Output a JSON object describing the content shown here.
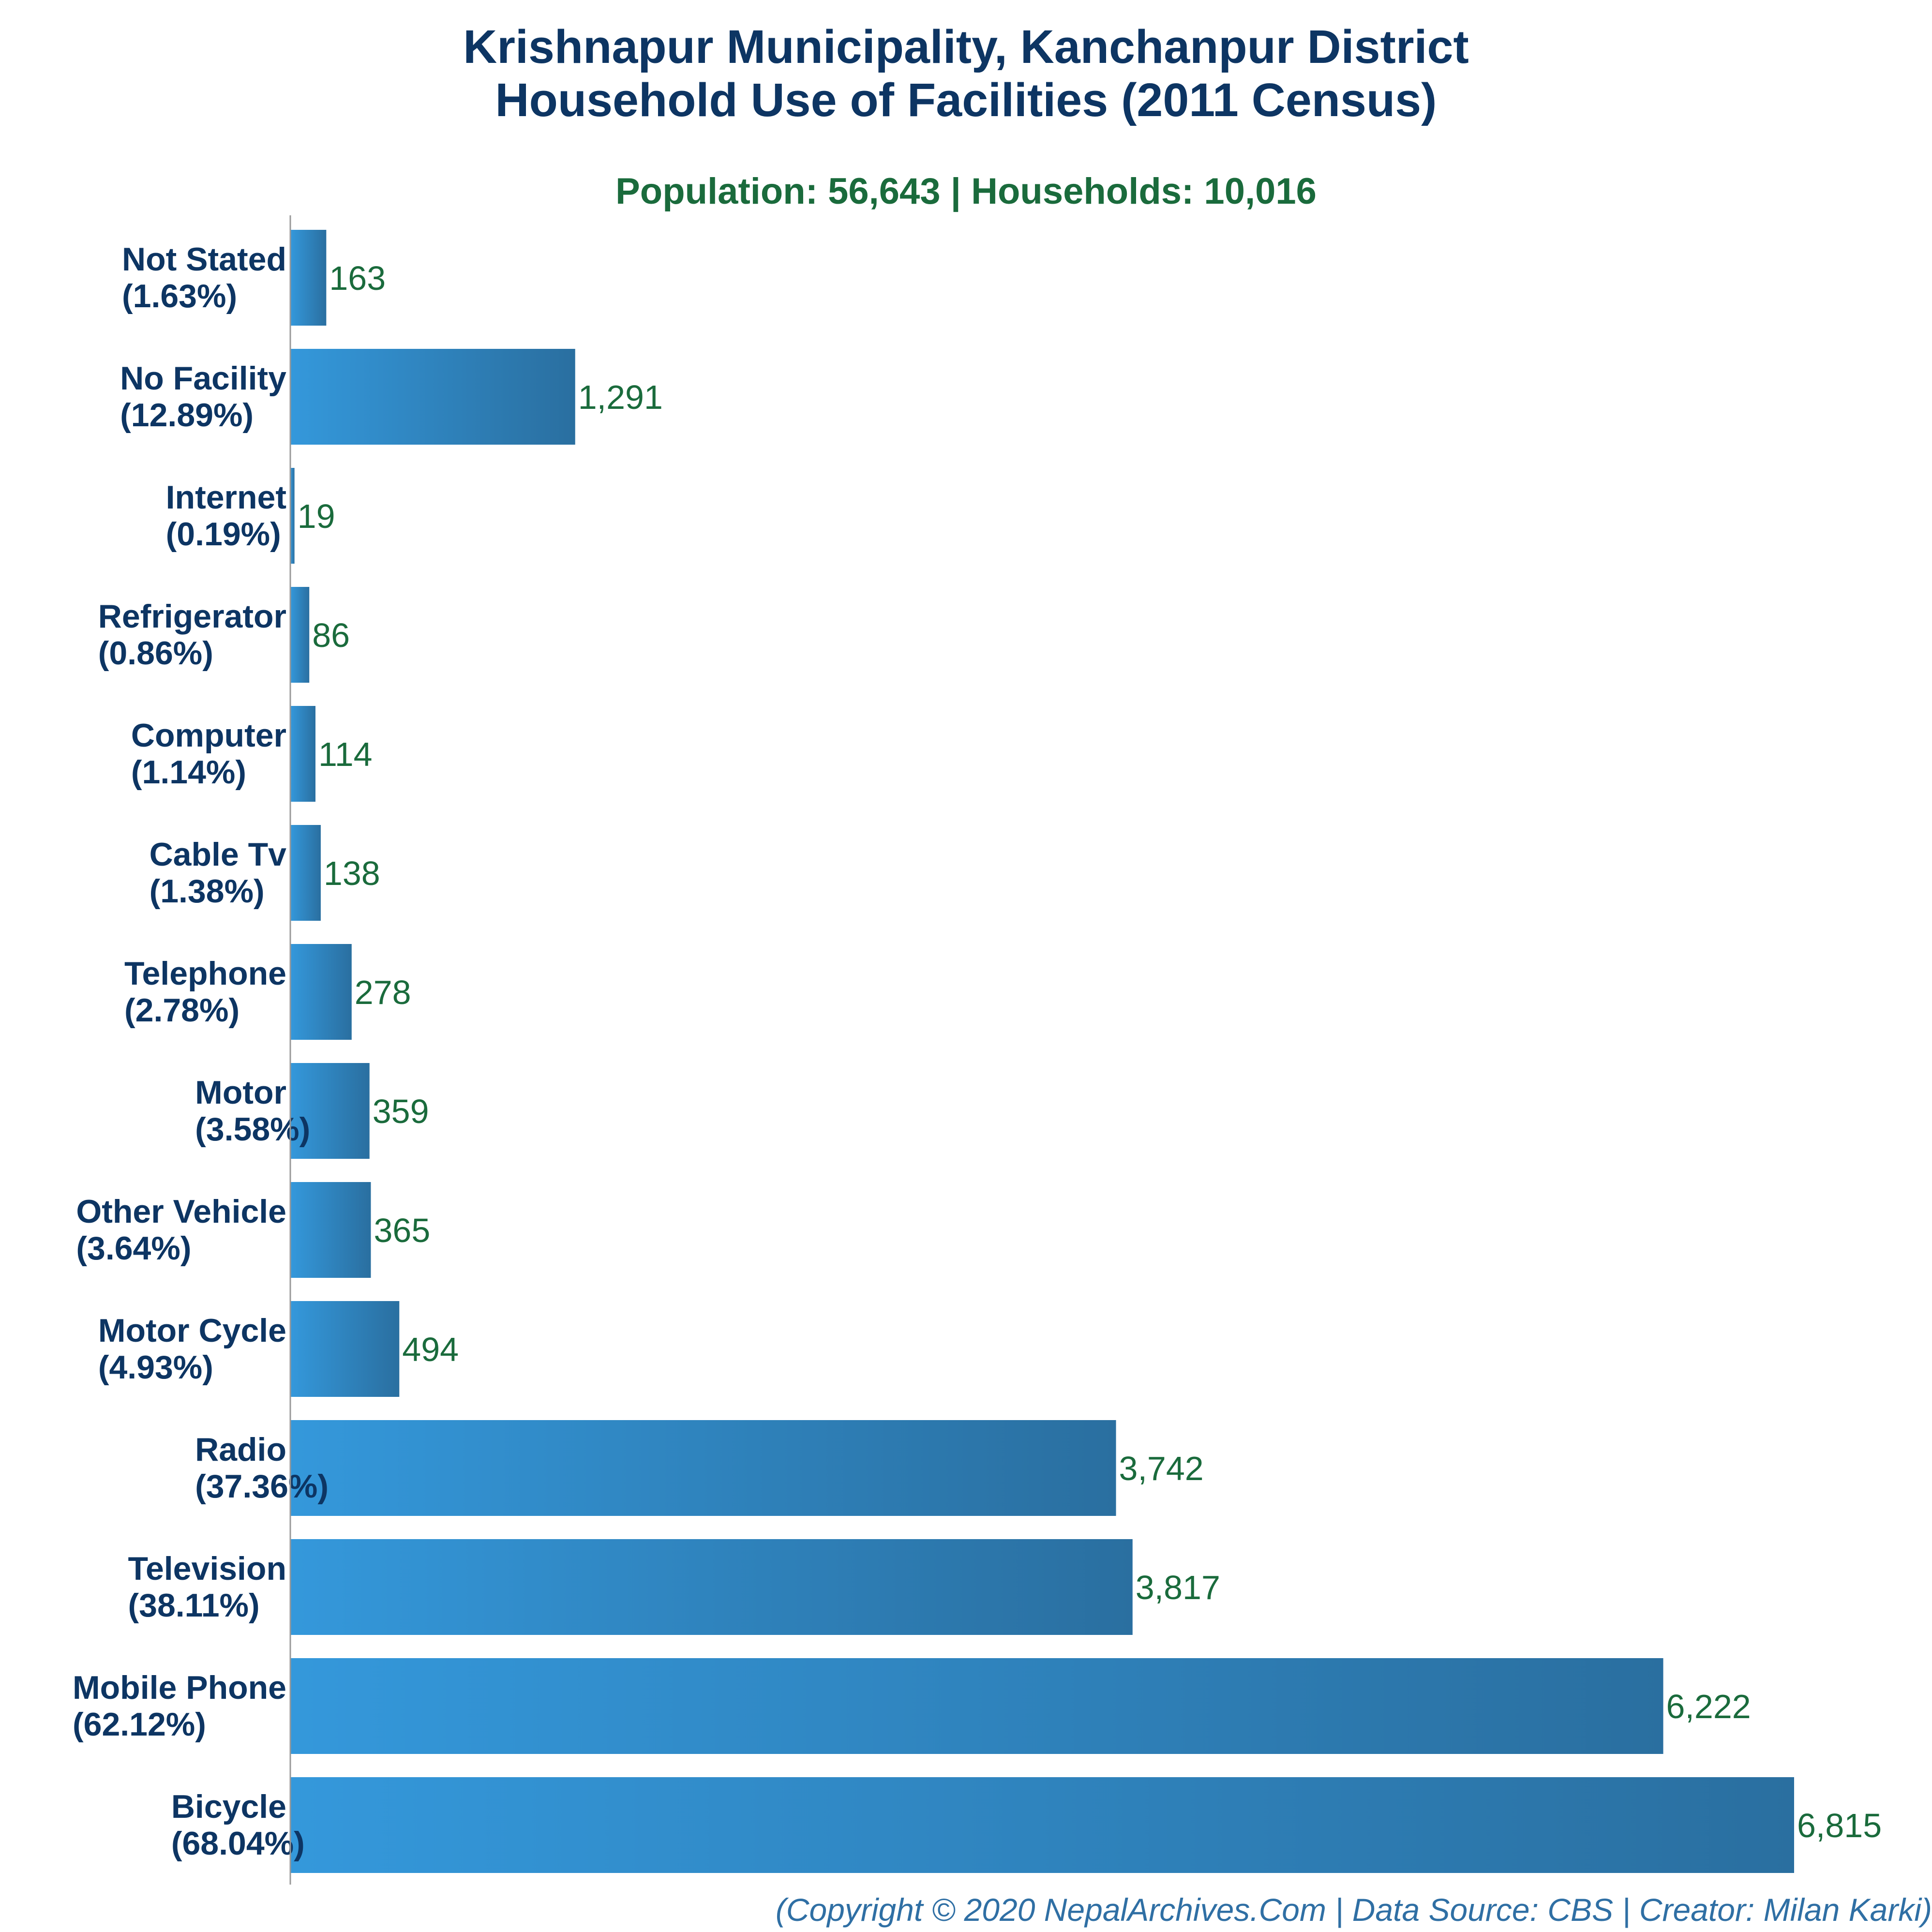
{
  "chart_data": {
    "type": "bar",
    "orientation": "horizontal",
    "title": "Krishnapur Municipality, Kanchanpur District",
    "title_line2": "Household Use of Facilities (2011 Census)",
    "subtitle": "Population: 56,643 | Households: 10,016",
    "footer": "(Copyright © 2020 NepalArchives.Com | Data Source: CBS | Creator: Milan Karki)",
    "categories": [
      "Not Stated",
      "No Facility",
      "Internet",
      "Refrigerator",
      "Computer",
      "Cable Tv",
      "Telephone",
      "Motor",
      "Other Vehicle",
      "Motor Cycle",
      "Radio",
      "Television",
      "Mobile Phone",
      "Bicycle"
    ],
    "percent_labels": [
      "(1.63%)",
      "(12.89%)",
      "(0.19%)",
      "(0.86%)",
      "(1.14%)",
      "(1.38%)",
      "(2.78%)",
      "(3.58%)",
      "(3.64%)",
      "(4.93%)",
      "(37.36%)",
      "(38.11%)",
      "(62.12%)",
      "(68.04%)"
    ],
    "values": [
      163,
      1291,
      19,
      86,
      114,
      138,
      278,
      359,
      365,
      494,
      3742,
      3817,
      6222,
      6815
    ],
    "value_labels": [
      "163",
      "1,291",
      "19",
      "86",
      "114",
      "138",
      "278",
      "359",
      "365",
      "494",
      "3,742",
      "3,817",
      "6,222",
      "6,815"
    ],
    "xlim": [
      0,
      6815
    ],
    "grid": false,
    "legend": "none",
    "colors": {
      "bar_start": "#3498db",
      "bar_end": "#2a6fa0",
      "title": "#0d3563",
      "category_label": "#0d3563",
      "value_label": "#1a6b3c",
      "subtitle": "#1a6b3c",
      "footer": "#2f6fa4",
      "axis": "#999999"
    }
  }
}
